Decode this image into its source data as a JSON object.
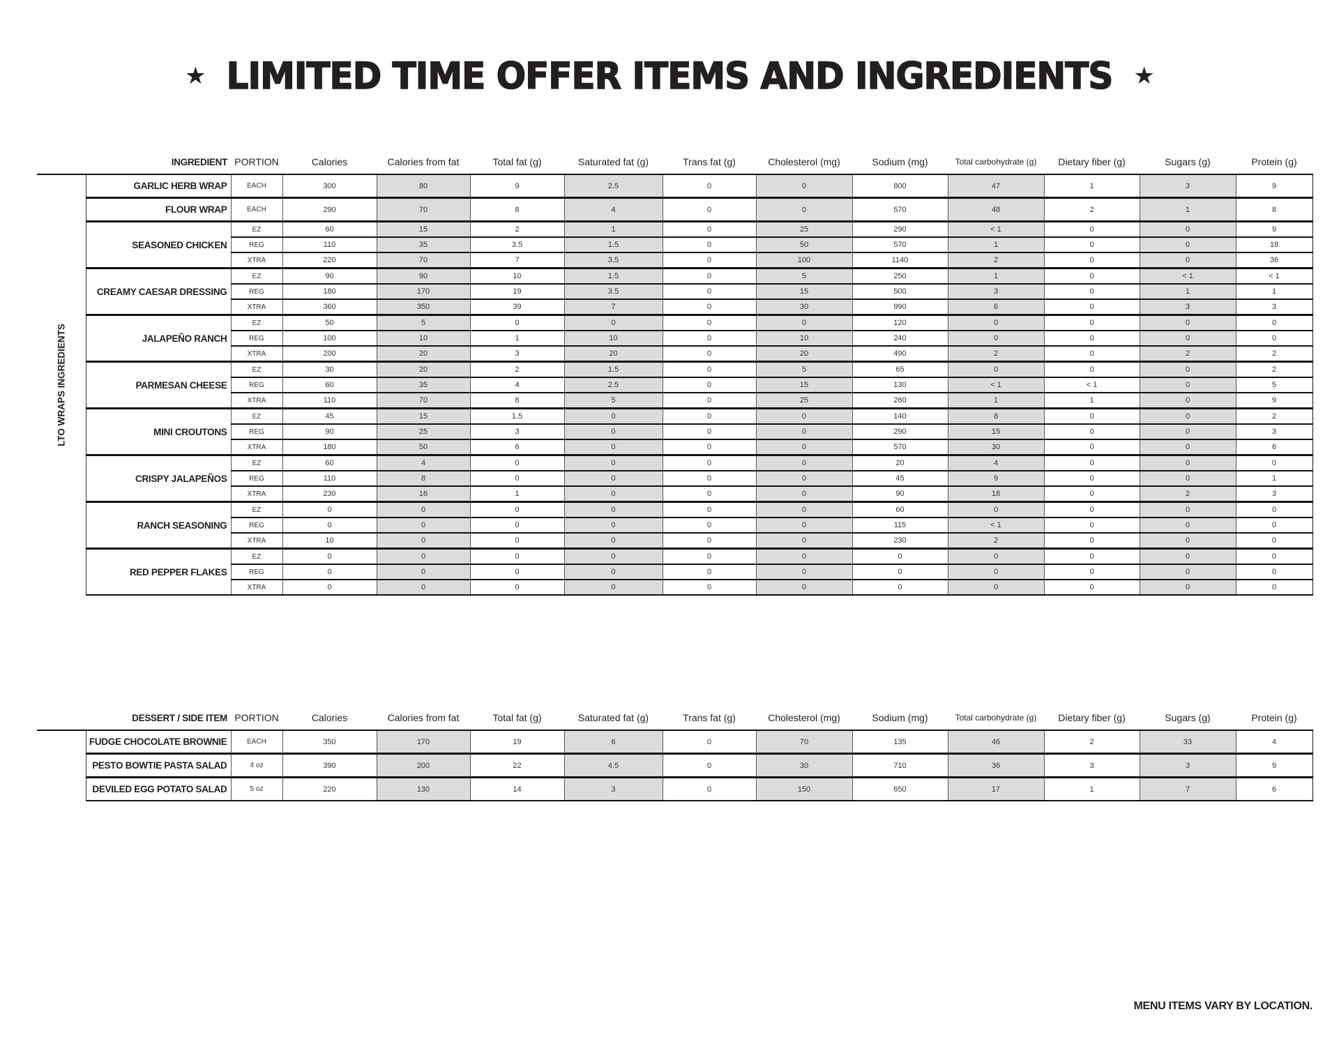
{
  "title": "LIMITED TIME OFFER ITEMS AND INGREDIENTS",
  "title_icon": "star-icon",
  "shade_color": "#dcdcdc",
  "columns": [
    "PORTION",
    "Calories",
    "Calories from fat",
    "Total fat (g)",
    "Saturated fat (g)",
    "Trans fat (g)",
    "Cholesterol (mg)",
    "Sodium (mg)",
    "Total carbohydrate (g)",
    "Dietary fiber (g)",
    "Sugars (g)",
    "Protein (g)"
  ],
  "lto": {
    "header": "INGREDIENT",
    "section_label": "LTO WRAPS INGREDIENTS",
    "groups": [
      {
        "name": "GARLIC HERB WRAP",
        "rows": [
          {
            "portion": "EACH",
            "values": [
              "300",
              "80",
              "9",
              "2.5",
              "0",
              "0",
              "800",
              "47",
              "1",
              "3",
              "9"
            ]
          }
        ]
      },
      {
        "name": "FLOUR WRAP",
        "rows": [
          {
            "portion": "EACH",
            "values": [
              "290",
              "70",
              "8",
              "4",
              "0",
              "0",
              "570",
              "48",
              "2",
              "1",
              "8"
            ]
          }
        ]
      },
      {
        "name": "SEASONED CHICKEN",
        "rows": [
          {
            "portion": "EZ",
            "values": [
              "60",
              "15",
              "2",
              "1",
              "0",
              "25",
              "290",
              "< 1",
              "0",
              "0",
              "9"
            ]
          },
          {
            "portion": "REG",
            "values": [
              "110",
              "35",
              "3.5",
              "1.5",
              "0",
              "50",
              "570",
              "1",
              "0",
              "0",
              "18"
            ]
          },
          {
            "portion": "XTRA",
            "values": [
              "220",
              "70",
              "7",
              "3.5",
              "0",
              "100",
              "1140",
              "2",
              "0",
              "0",
              "36"
            ]
          }
        ]
      },
      {
        "name": "CREAMY CAESAR DRESSING",
        "rows": [
          {
            "portion": "EZ",
            "values": [
              "90",
              "90",
              "10",
              "1.5",
              "0",
              "5",
              "250",
              "1",
              "0",
              "< 1",
              "< 1"
            ]
          },
          {
            "portion": "REG",
            "values": [
              "180",
              "170",
              "19",
              "3.5",
              "0",
              "15",
              "500",
              "3",
              "0",
              "1",
              "1"
            ]
          },
          {
            "portion": "XTRA",
            "values": [
              "360",
              "350",
              "39",
              "7",
              "0",
              "30",
              "990",
              "6",
              "0",
              "3",
              "3"
            ]
          }
        ]
      },
      {
        "name": "JALAPEÑO RANCH",
        "rows": [
          {
            "portion": "EZ",
            "values": [
              "50",
              "5",
              "0",
              "0",
              "0",
              "0",
              "120",
              "0",
              "0",
              "0",
              "0"
            ]
          },
          {
            "portion": "REG",
            "values": [
              "100",
              "10",
              "1",
              "10",
              "0",
              "10",
              "240",
              "0",
              "0",
              "0",
              "0"
            ]
          },
          {
            "portion": "XTRA",
            "values": [
              "200",
              "20",
              "3",
              "20",
              "0",
              "20",
              "490",
              "2",
              "0",
              "2",
              "2"
            ]
          }
        ]
      },
      {
        "name": "PARMESAN CHEESE",
        "rows": [
          {
            "portion": "EZ",
            "values": [
              "30",
              "20",
              "2",
              "1.5",
              "0",
              "5",
              "65",
              "0",
              "0",
              "0",
              "2"
            ]
          },
          {
            "portion": "REG",
            "values": [
              "60",
              "35",
              "4",
              "2.5",
              "0",
              "15",
              "130",
              "< 1",
              "< 1",
              "0",
              "5"
            ]
          },
          {
            "portion": "XTRA",
            "values": [
              "110",
              "70",
              "8",
              "5",
              "0",
              "25",
              "260",
              "1",
              "1",
              "0",
              "9"
            ]
          }
        ]
      },
      {
        "name": "MINI CROUTONS",
        "rows": [
          {
            "portion": "EZ",
            "values": [
              "45",
              "15",
              "1.5",
              "0",
              "0",
              "0",
              "140",
              "8",
              "0",
              "0",
              "2"
            ]
          },
          {
            "portion": "REG",
            "values": [
              "90",
              "25",
              "3",
              "0",
              "0",
              "0",
              "290",
              "15",
              "0",
              "0",
              "3"
            ]
          },
          {
            "portion": "XTRA",
            "values": [
              "180",
              "50",
              "6",
              "0",
              "0",
              "0",
              "570",
              "30",
              "0",
              "0",
              "6"
            ]
          }
        ]
      },
      {
        "name": "CRISPY JALAPEÑOS",
        "rows": [
          {
            "portion": "EZ",
            "values": [
              "60",
              "4",
              "0",
              "0",
              "0",
              "0",
              "20",
              "4",
              "0",
              "0",
              "0"
            ]
          },
          {
            "portion": "REG",
            "values": [
              "110",
              "8",
              "0",
              "0",
              "0",
              "0",
              "45",
              "9",
              "0",
              "0",
              "1"
            ]
          },
          {
            "portion": "XTRA",
            "values": [
              "230",
              "16",
              "1",
              "0",
              "0",
              "0",
              "90",
              "18",
              "0",
              "2",
              "3"
            ]
          }
        ]
      },
      {
        "name": "RANCH SEASONING",
        "rows": [
          {
            "portion": "EZ",
            "values": [
              "0",
              "0",
              "0",
              "0",
              "0",
              "0",
              "60",
              "0",
              "0",
              "0",
              "0"
            ]
          },
          {
            "portion": "REG",
            "values": [
              "0",
              "0",
              "0",
              "0",
              "0",
              "0",
              "115",
              "< 1",
              "0",
              "0",
              "0"
            ]
          },
          {
            "portion": "XTRA",
            "values": [
              "10",
              "0",
              "0",
              "0",
              "0",
              "0",
              "230",
              "2",
              "0",
              "0",
              "0"
            ]
          }
        ]
      },
      {
        "name": "RED PEPPER FLAKES",
        "rows": [
          {
            "portion": "EZ",
            "values": [
              "0",
              "0",
              "0",
              "0",
              "0",
              "0",
              "0",
              "0",
              "0",
              "0",
              "0"
            ]
          },
          {
            "portion": "REG",
            "values": [
              "0",
              "0",
              "0",
              "0",
              "0",
              "0",
              "0",
              "0",
              "0",
              "0",
              "0"
            ]
          },
          {
            "portion": "XTRA",
            "values": [
              "0",
              "0",
              "0",
              "0",
              "0",
              "0",
              "0",
              "0",
              "0",
              "0",
              "0"
            ]
          }
        ]
      }
    ]
  },
  "dessert": {
    "header": "DESSERT / SIDE ITEM",
    "section_label": "",
    "groups": [
      {
        "name": "FUDGE CHOCOLATE BROWNIE",
        "rows": [
          {
            "portion": "EACH",
            "values": [
              "350",
              "170",
              "19",
              "6",
              "0",
              "70",
              "135",
              "46",
              "2",
              "33",
              "4"
            ]
          }
        ]
      },
      {
        "name": "PESTO BOWTIE PASTA SALAD",
        "rows": [
          {
            "portion": "4 oz",
            "values": [
              "390",
              "200",
              "22",
              "4.5",
              "0",
              "30",
              "710",
              "36",
              "3",
              "3",
              "9"
            ]
          }
        ]
      },
      {
        "name": "DEVILED EGG POTATO SALAD",
        "rows": [
          {
            "portion": "5 oz",
            "values": [
              "220",
              "130",
              "14",
              "3",
              "0",
              "150",
              "650",
              "17",
              "1",
              "7",
              "6"
            ]
          }
        ]
      }
    ]
  },
  "footer": "MENU ITEMS VARY BY LOCATION."
}
